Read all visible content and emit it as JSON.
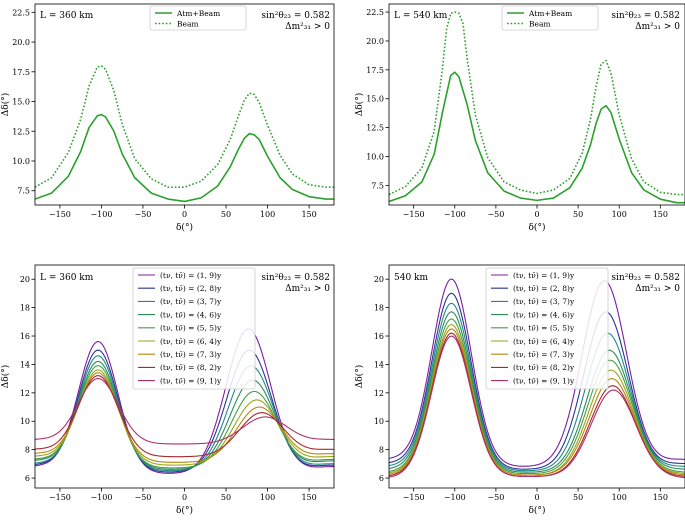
{
  "chart_data": [
    {
      "type": "line",
      "annotation_left": "L = 360 km",
      "annotation_right": [
        "sin²θ₂₃ = 0.582",
        "Δm²₃₁ > 0"
      ],
      "xlabel": "δ(°)",
      "ylabel": "Δδ(°)",
      "xlim": [
        -180,
        180
      ],
      "ylim": [
        6.3,
        23.2
      ],
      "xticks": [
        -150,
        -100,
        -50,
        0,
        50,
        100,
        150
      ],
      "yticks": [
        7.5,
        10.0,
        12.5,
        15.0,
        17.5,
        20.0,
        22.5
      ],
      "yticklabels": [
        "7.5",
        "10.0",
        "12.5",
        "15.0",
        "17.5",
        "20.0",
        "22.5"
      ],
      "legend_position": "top-center",
      "series": [
        {
          "name": "Atm+Beam",
          "color": "#2ca02c",
          "style": "solid",
          "x": [
            -180,
            -160,
            -140,
            -125,
            -115,
            -105,
            -100,
            -95,
            -85,
            -75,
            -60,
            -40,
            -20,
            0,
            20,
            40,
            55,
            65,
            72,
            78,
            84,
            90,
            100,
            115,
            130,
            150,
            170,
            180
          ],
          "y": [
            6.8,
            7.3,
            8.7,
            10.8,
            12.8,
            13.8,
            13.9,
            13.7,
            12.5,
            10.6,
            8.6,
            7.3,
            6.8,
            6.6,
            6.9,
            7.9,
            9.5,
            11.0,
            11.9,
            12.3,
            12.2,
            11.8,
            10.4,
            8.6,
            7.6,
            7.0,
            6.8,
            6.8
          ]
        },
        {
          "name": "Beam",
          "color": "#2ca02c",
          "style": "dotted",
          "x": [
            -180,
            -160,
            -140,
            -125,
            -115,
            -105,
            -100,
            -95,
            -85,
            -75,
            -60,
            -40,
            -20,
            0,
            20,
            40,
            55,
            65,
            72,
            78,
            84,
            90,
            100,
            115,
            130,
            150,
            170,
            180
          ],
          "y": [
            7.8,
            8.6,
            10.7,
            13.5,
            16.3,
            17.9,
            18.0,
            17.7,
            15.9,
            13.1,
            10.2,
            8.5,
            7.8,
            7.8,
            8.3,
            9.7,
            11.8,
            13.8,
            15.1,
            15.7,
            15.6,
            14.9,
            13.0,
            10.5,
            8.9,
            8.0,
            7.8,
            7.8
          ]
        }
      ]
    },
    {
      "type": "line",
      "annotation_left": "L = 540 km",
      "annotation_right": [
        "sin²θ₂₃ = 0.582",
        "Δm²₃₁ > 0"
      ],
      "xlabel": "δ(°)",
      "ylabel": "Δδ(°)",
      "xlim": [
        -180,
        180
      ],
      "ylim": [
        5.8,
        23.2
      ],
      "xticks": [
        -150,
        -100,
        -50,
        0,
        50,
        100,
        150
      ],
      "yticks": [
        7.5,
        10.0,
        12.5,
        15.0,
        17.5,
        20.0,
        22.5
      ],
      "yticklabels": [
        "7.5",
        "10.0",
        "12.5",
        "15.0",
        "17.5",
        "20.0",
        "22.5"
      ],
      "legend_position": "top-center",
      "series": [
        {
          "name": "Atm+Beam",
          "color": "#2ca02c",
          "style": "solid",
          "x": [
            -180,
            -160,
            -140,
            -125,
            -115,
            -105,
            -100,
            -95,
            -85,
            -75,
            -60,
            -40,
            -20,
            0,
            20,
            40,
            55,
            65,
            72,
            78,
            84,
            90,
            100,
            115,
            130,
            150,
            170,
            180
          ],
          "y": [
            6.1,
            6.6,
            7.8,
            10.2,
            13.8,
            17.0,
            17.3,
            16.9,
            14.5,
            11.4,
            8.6,
            7.0,
            6.4,
            6.2,
            6.4,
            7.3,
            9.0,
            11.0,
            12.9,
            14.1,
            14.4,
            13.8,
            11.5,
            8.6,
            7.1,
            6.3,
            6.0,
            6.0
          ]
        },
        {
          "name": "Beam",
          "color": "#2ca02c",
          "style": "dotted",
          "x": [
            -180,
            -160,
            -140,
            -125,
            -115,
            -110,
            -105,
            -100,
            -95,
            -90,
            -85,
            -75,
            -60,
            -40,
            -20,
            0,
            20,
            40,
            55,
            65,
            72,
            78,
            84,
            90,
            100,
            115,
            130,
            150,
            170,
            180
          ],
          "y": [
            6.7,
            7.4,
            9.0,
            12.2,
            17.6,
            21.0,
            22.4,
            22.5,
            22.4,
            21.5,
            18.5,
            13.6,
            9.9,
            7.8,
            7.1,
            6.8,
            7.1,
            8.1,
            10.3,
            13.2,
            16.1,
            18.0,
            18.3,
            17.2,
            13.6,
            9.8,
            7.8,
            6.9,
            6.7,
            6.7
          ]
        }
      ]
    },
    {
      "type": "line",
      "annotation_left": "L = 360 km",
      "annotation_right": [
        "sin²θ₂₃ = 0.582",
        "Δm²₃₁ > 0"
      ],
      "xlabel": "δ(°)",
      "ylabel": "Δδ(°)",
      "xlim": [
        -180,
        180
      ],
      "ylim": [
        5.3,
        21.0
      ],
      "xticks": [
        -150,
        -100,
        -50,
        0,
        50,
        100,
        150
      ],
      "yticks": [
        6,
        8,
        10,
        12,
        14,
        16,
        18,
        20
      ],
      "yticklabels": [
        "6",
        "8",
        "10",
        "12",
        "14",
        "16",
        "18",
        "20"
      ],
      "legend_position": "top-center",
      "series": [
        {
          "name": "(tν, tν̄) = (1, 9)y",
          "color": "#7b1fa2",
          "peak1": 15.6,
          "peak2": 16.5,
          "trough": 6.3,
          "base": 6.8,
          "x2": 77
        },
        {
          "name": "(tν, tν̄) = (2, 8)y",
          "color": "#283593",
          "peak1": 15.0,
          "peak2": 15.0,
          "trough": 6.4,
          "base": 6.9,
          "x2": 78
        },
        {
          "name": "(tν, tν̄) = (3, 7)y",
          "color": "#1f8a8a",
          "peak1": 14.6,
          "peak2": 13.9,
          "trough": 6.5,
          "base": 7.0,
          "x2": 80
        },
        {
          "name": "(tν, tν̄) = (4, 6)y",
          "color": "#2e8b57",
          "peak1": 14.2,
          "peak2": 12.9,
          "trough": 6.6,
          "base": 7.2,
          "x2": 82
        },
        {
          "name": "(tν, tν̄) = (5, 5)y",
          "color": "#43a047",
          "peak1": 13.9,
          "peak2": 12.1,
          "trough": 6.7,
          "base": 7.3,
          "x2": 84
        },
        {
          "name": "(tν, tν̄) = (6, 4)y",
          "color": "#9aa51e",
          "peak1": 13.6,
          "peak2": 11.5,
          "trough": 6.9,
          "base": 7.5,
          "x2": 87
        },
        {
          "name": "(tν, tν̄) = (7, 3)y",
          "color": "#b8860b",
          "peak1": 13.4,
          "peak2": 11.0,
          "trough": 7.1,
          "base": 7.7,
          "x2": 90
        },
        {
          "name": "(tν, tν̄) = (8, 2)y",
          "color": "#a52a2a",
          "peak1": 13.2,
          "peak2": 10.6,
          "trough": 7.5,
          "base": 8.0,
          "x2": 93
        },
        {
          "name": "(tν, tν̄) = (9, 1)y",
          "color": "#b0306a",
          "peak1": 13.0,
          "peak2": 10.3,
          "trough": 8.4,
          "base": 8.7,
          "x2": 97
        }
      ]
    },
    {
      "type": "line",
      "annotation_left": "540 km",
      "annotation_right": [
        "sin²θ₂₃ = 0.582",
        "Δm²₃₁ > 0"
      ],
      "xlabel": "δ(°)",
      "ylabel": "Δδ(°)",
      "xlim": [
        -180,
        180
      ],
      "ylim": [
        5.3,
        21.0
      ],
      "xticks": [
        -150,
        -100,
        -50,
        0,
        50,
        100,
        150
      ],
      "yticks": [
        6,
        8,
        10,
        12,
        14,
        16,
        18,
        20
      ],
      "yticklabels": [
        "6",
        "8",
        "10",
        "12",
        "14",
        "16",
        "18",
        "20"
      ],
      "legend_position": "top-center",
      "series": [
        {
          "name": "(tν, tν̄) = (1, 9)y",
          "color": "#7b1fa2",
          "peak1": 20.0,
          "peak2": 19.9,
          "trough": 6.8,
          "base": 7.3,
          "x2": 82
        },
        {
          "name": "(tν, tν̄) = (2, 8)y",
          "color": "#283593",
          "peak1": 19.0,
          "peak2": 17.7,
          "trough": 6.6,
          "base": 7.0,
          "x2": 84
        },
        {
          "name": "(tν, tν̄) = (3, 7)y",
          "color": "#1f8a8a",
          "peak1": 18.3,
          "peak2": 16.2,
          "trough": 6.5,
          "base": 6.8,
          "x2": 86
        },
        {
          "name": "(tν, tν̄) = (4, 6)y",
          "color": "#2e8b57",
          "peak1": 17.7,
          "peak2": 15.0,
          "trough": 6.4,
          "base": 6.6,
          "x2": 88
        },
        {
          "name": "(tν, tν̄) = (5, 5)y",
          "color": "#43a047",
          "peak1": 17.2,
          "peak2": 14.3,
          "trough": 6.3,
          "base": 6.4,
          "x2": 89
        },
        {
          "name": "(tν, tν̄) = (6, 4)y",
          "color": "#9aa51e",
          "peak1": 16.8,
          "peak2": 13.6,
          "trough": 6.2,
          "base": 6.3,
          "x2": 90
        },
        {
          "name": "(tν, tν̄) = (7, 3)y",
          "color": "#b8860b",
          "peak1": 16.5,
          "peak2": 13.0,
          "trough": 6.2,
          "base": 6.2,
          "x2": 91
        },
        {
          "name": "(tν, tν̄) = (8, 2)y",
          "color": "#a52a2a",
          "peak1": 16.2,
          "peak2": 12.5,
          "trough": 6.1,
          "base": 6.1,
          "x2": 92
        },
        {
          "name": "(tν, tν̄) = (9, 1)y",
          "color": "#b0306a",
          "peak1": 16.0,
          "peak2": 12.2,
          "trough": 6.1,
          "base": 6.0,
          "x2": 93
        }
      ]
    }
  ]
}
